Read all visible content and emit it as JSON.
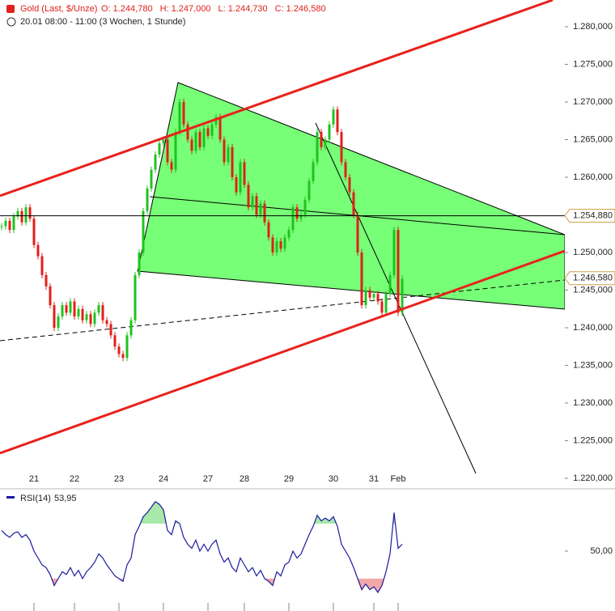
{
  "chart_data": {
    "type": "candlestick",
    "title": "Gold (Last, $/Unze)",
    "quote": [
      {
        "label": "O:",
        "value": "1.244,780"
      },
      {
        "label": "H:",
        "value": "1.247,000"
      },
      {
        "label": "L:",
        "value": "1.244,730"
      },
      {
        "label": "C:",
        "value": "1.246,580"
      }
    ],
    "subtitle": "20.01 08:00 - 11:00 (3 Wochen, 1 Stunde)",
    "xticks": [
      {
        "value": 8,
        "label": "21"
      },
      {
        "value": 18,
        "label": "22"
      },
      {
        "value": 29,
        "label": "23"
      },
      {
        "value": 40,
        "label": "24"
      },
      {
        "value": 51,
        "label": "27"
      },
      {
        "value": 60,
        "label": "28"
      },
      {
        "value": 71,
        "label": "29"
      },
      {
        "value": 82,
        "label": "30"
      },
      {
        "value": 92,
        "label": "31"
      },
      {
        "value": 98,
        "label": "Feb"
      }
    ],
    "xlim": [
      -0.4,
      139.2
    ],
    "ylim": [
      1220,
      1280
    ],
    "yticks": [
      {
        "value": 1220,
        "label": "1.220,000"
      },
      {
        "value": 1225,
        "label": "1.225,000"
      },
      {
        "value": 1230,
        "label": "1.230,000"
      },
      {
        "value": 1235,
        "label": "1.235,000"
      },
      {
        "value": 1240,
        "label": "1.240,000"
      },
      {
        "value": 1245,
        "label": "1.245,000"
      },
      {
        "value": 1250,
        "label": "1.250,000"
      },
      {
        "value": 1260,
        "label": "1.260,000"
      },
      {
        "value": 1265,
        "label": "1.265,000"
      },
      {
        "value": 1270,
        "label": "1.270,000"
      },
      {
        "value": 1275,
        "label": "1.275,000"
      },
      {
        "value": 1280,
        "label": "1.280,000"
      }
    ],
    "hline": {
      "value": 1254.88,
      "label": "1.254,880"
    },
    "last": {
      "value": 1246.58,
      "label": "1.246,580"
    },
    "up_color": "#1fc31f",
    "down_color": "#e0201a",
    "series": [
      {
        "name": "Gold",
        "values": [
          1253.5,
          1254.2,
          1253.0,
          1254.8,
          1255.5,
          1254.0,
          1256.0,
          1254.5,
          1251.0,
          1249.5,
          1247.0,
          1245.5,
          1243.0,
          1240.0,
          1241.5,
          1243.0,
          1242.0,
          1243.5,
          1241.5,
          1242.5,
          1241.0,
          1241.8,
          1240.5,
          1242.0,
          1243.0,
          1241.0,
          1240.5,
          1239.0,
          1237.5,
          1236.5,
          1236.0,
          1239.0,
          1241.0,
          1247.0,
          1250.0,
          1255.5,
          1258.5,
          1261.0,
          1263.0,
          1264.5,
          1265.0,
          1262.0,
          1261.0,
          1266.0,
          1270.0,
          1267.0,
          1265.0,
          1263.5,
          1266.0,
          1264.0,
          1266.5,
          1265.5,
          1267.0,
          1268.0,
          1265.0,
          1262.0,
          1264.0,
          1260.0,
          1258.0,
          1262.0,
          1259.0,
          1256.0,
          1257.5,
          1255.0,
          1256.5,
          1254.0,
          1252.0,
          1250.0,
          1251.5,
          1250.5,
          1252.0,
          1253.0,
          1256.0,
          1254.5,
          1255.0,
          1257.0,
          1259.5,
          1262.0,
          1266.0,
          1264.0,
          1265.0,
          1267.0,
          1269.0,
          1266.0,
          1262.0,
          1260.0,
          1258.0,
          1255.0,
          1250.0,
          1243.0,
          1245.0,
          1244.0,
          1244.5,
          1243.5,
          1242.0,
          1244.5,
          1247.0,
          1253.0,
          1242.0,
          1246.5
        ]
      }
    ],
    "rsi": {
      "name": "RSI(14)",
      "value_label": "53,95",
      "color": "#1a1aa0",
      "ylim": [
        10,
        95
      ],
      "yticks": [
        {
          "value": 50,
          "label": "50,00"
        }
      ],
      "upper": 70,
      "lower": 30,
      "values": [
        65,
        62,
        60,
        63,
        64,
        60,
        62,
        58,
        50,
        45,
        40,
        38,
        33,
        25,
        30,
        35,
        33,
        38,
        32,
        36,
        30,
        35,
        38,
        42,
        48,
        45,
        40,
        36,
        32,
        30,
        28,
        40,
        45,
        62,
        68,
        75,
        78,
        82,
        86,
        84,
        80,
        65,
        62,
        72,
        70,
        60,
        55,
        52,
        58,
        50,
        55,
        50,
        55,
        58,
        48,
        42,
        45,
        38,
        35,
        45,
        40,
        35,
        38,
        32,
        36,
        30,
        28,
        25,
        35,
        32,
        40,
        42,
        50,
        45,
        48,
        55,
        62,
        68,
        76,
        72,
        74,
        72,
        75,
        68,
        55,
        50,
        45,
        38,
        30,
        22,
        26,
        22,
        24,
        20,
        25,
        35,
        48,
        78,
        52,
        55
      ]
    }
  }
}
